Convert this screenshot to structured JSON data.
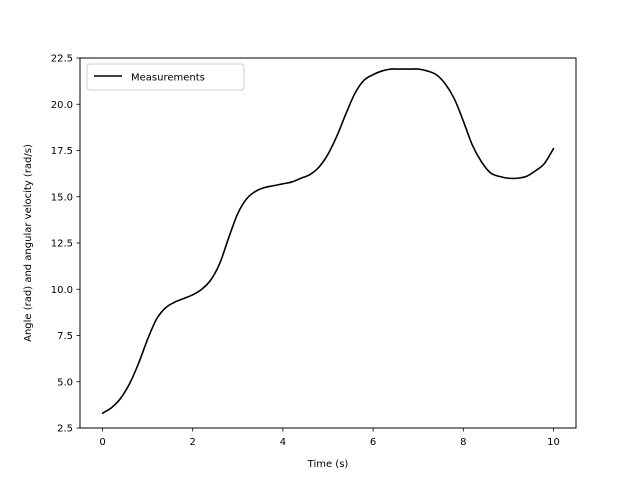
{
  "chart_data": {
    "type": "line",
    "xlabel": "Time (s)",
    "ylabel": "Angle (rad) and angular velocity (rad/s)",
    "xlim": [
      -0.5,
      10.5
    ],
    "ylim": [
      2.5,
      22.5
    ],
    "xticks": [
      0,
      2,
      4,
      6,
      8,
      10
    ],
    "xtick_labels": [
      "0",
      "2",
      "4",
      "6",
      "8",
      "10"
    ],
    "yticks": [
      2.5,
      5.0,
      7.5,
      10.0,
      12.5,
      15.0,
      17.5,
      20.0,
      22.5
    ],
    "ytick_labels": [
      "2.5",
      "5.0",
      "7.5",
      "10.0",
      "12.5",
      "15.0",
      "17.5",
      "20.0",
      "22.5"
    ],
    "grid": false,
    "legend_position": "upper-left",
    "series": [
      {
        "name": "Measurements",
        "color": "#000000",
        "x": [
          0.0,
          0.2,
          0.4,
          0.6,
          0.8,
          1.0,
          1.2,
          1.4,
          1.6,
          1.8,
          2.0,
          2.2,
          2.4,
          2.6,
          2.8,
          3.0,
          3.2,
          3.4,
          3.6,
          3.8,
          4.0,
          4.2,
          4.4,
          4.6,
          4.8,
          5.0,
          5.2,
          5.4,
          5.6,
          5.8,
          6.0,
          6.2,
          6.4,
          6.6,
          6.8,
          7.0,
          7.2,
          7.4,
          7.6,
          7.8,
          8.0,
          8.2,
          8.4,
          8.6,
          8.8,
          9.0,
          9.2,
          9.4,
          9.6,
          9.8,
          10.0
        ],
        "y": [
          3.3,
          3.6,
          4.1,
          4.9,
          6.0,
          7.3,
          8.4,
          9.0,
          9.3,
          9.5,
          9.7,
          10.0,
          10.5,
          11.4,
          12.8,
          14.1,
          14.9,
          15.3,
          15.5,
          15.6,
          15.7,
          15.8,
          16.0,
          16.2,
          16.6,
          17.3,
          18.3,
          19.5,
          20.6,
          21.3,
          21.6,
          21.8,
          21.9,
          21.9,
          21.9,
          21.9,
          21.8,
          21.6,
          21.1,
          20.3,
          19.1,
          17.8,
          16.9,
          16.3,
          16.1,
          16.0,
          16.0,
          16.1,
          16.4,
          16.8,
          17.6
        ]
      }
    ]
  }
}
